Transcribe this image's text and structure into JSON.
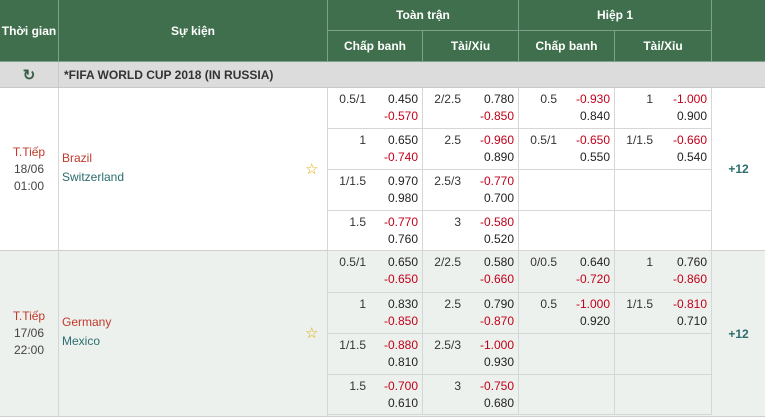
{
  "header": {
    "time": "Thời gian",
    "event": "Sự kiện",
    "full_match": "Toàn trận",
    "half1": "Hiệp 1",
    "handicap": "Chấp banh",
    "overunder": "Tài/Xỉu"
  },
  "league": {
    "name": "*FIFA WORLD CUP 2018 (IN RUSSIA)",
    "refresh_icon": "refresh-icon"
  },
  "matches": [
    {
      "status": "T.Tiếp",
      "date": "18/06",
      "time": "01:00",
      "home": "Brazil",
      "away": "Switzerland",
      "more": "+12",
      "rows": [
        {
          "ah_line": "0.5/1",
          "ah_1": "0.450",
          "ah_2": "-0.570",
          "ou_line": "2/2.5",
          "ou_1": "0.780",
          "ou_2": "-0.850",
          "h_ah_line": "0.5",
          "h_ah_1": "-0.930",
          "h_ah_2": "0.840",
          "h_ou_line": "1",
          "h_ou_1": "-1.000",
          "h_ou_2": "0.900"
        },
        {
          "ah_line": "1",
          "ah_1": "0.650",
          "ah_2": "-0.740",
          "ou_line": "2.5",
          "ou_1": "-0.960",
          "ou_2": "0.890",
          "h_ah_line": "0.5/1",
          "h_ah_1": "-0.650",
          "h_ah_2": "0.550",
          "h_ou_line": "1/1.5",
          "h_ou_1": "-0.660",
          "h_ou_2": "0.540"
        },
        {
          "ah_line": "1/1.5",
          "ah_1": "0.970",
          "ah_2": "0.980",
          "ou_line": "2.5/3",
          "ou_1": "-0.770",
          "ou_2": "0.700",
          "h_ah_line": "",
          "h_ah_1": "",
          "h_ah_2": "",
          "h_ou_line": "",
          "h_ou_1": "",
          "h_ou_2": ""
        },
        {
          "ah_line": "1.5",
          "ah_1": "-0.770",
          "ah_2": "0.760",
          "ou_line": "3",
          "ou_1": "-0.580",
          "ou_2": "0.520",
          "h_ah_line": "",
          "h_ah_1": "",
          "h_ah_2": "",
          "h_ou_line": "",
          "h_ou_1": "",
          "h_ou_2": ""
        }
      ]
    },
    {
      "status": "T.Tiếp",
      "date": "17/06",
      "time": "22:00",
      "home": "Germany",
      "away": "Mexico",
      "more": "+12",
      "rows": [
        {
          "ah_line": "0.5/1",
          "ah_1": "0.650",
          "ah_2": "-0.650",
          "ou_line": "2/2.5",
          "ou_1": "0.580",
          "ou_2": "-0.660",
          "h_ah_line": "0/0.5",
          "h_ah_1": "0.640",
          "h_ah_2": "-0.720",
          "h_ou_line": "1",
          "h_ou_1": "0.760",
          "h_ou_2": "-0.860"
        },
        {
          "ah_line": "1",
          "ah_1": "0.830",
          "ah_2": "-0.850",
          "ou_line": "2.5",
          "ou_1": "0.790",
          "ou_2": "-0.870",
          "h_ah_line": "0.5",
          "h_ah_1": "-1.000",
          "h_ah_2": "0.920",
          "h_ou_line": "1/1.5",
          "h_ou_1": "-0.810",
          "h_ou_2": "0.710"
        },
        {
          "ah_line": "1/1.5",
          "ah_1": "-0.880",
          "ah_2": "0.810",
          "ou_line": "2.5/3",
          "ou_1": "-1.000",
          "ou_2": "0.930",
          "h_ah_line": "",
          "h_ah_1": "",
          "h_ah_2": "",
          "h_ou_line": "",
          "h_ou_1": "",
          "h_ou_2": ""
        },
        {
          "ah_line": "1.5",
          "ah_1": "-0.700",
          "ah_2": "0.610",
          "ou_line": "3",
          "ou_1": "-0.750",
          "ou_2": "0.680",
          "h_ah_line": "",
          "h_ah_1": "",
          "h_ah_2": "",
          "h_ou_line": "",
          "h_ou_1": "",
          "h_ou_2": ""
        }
      ]
    }
  ]
}
